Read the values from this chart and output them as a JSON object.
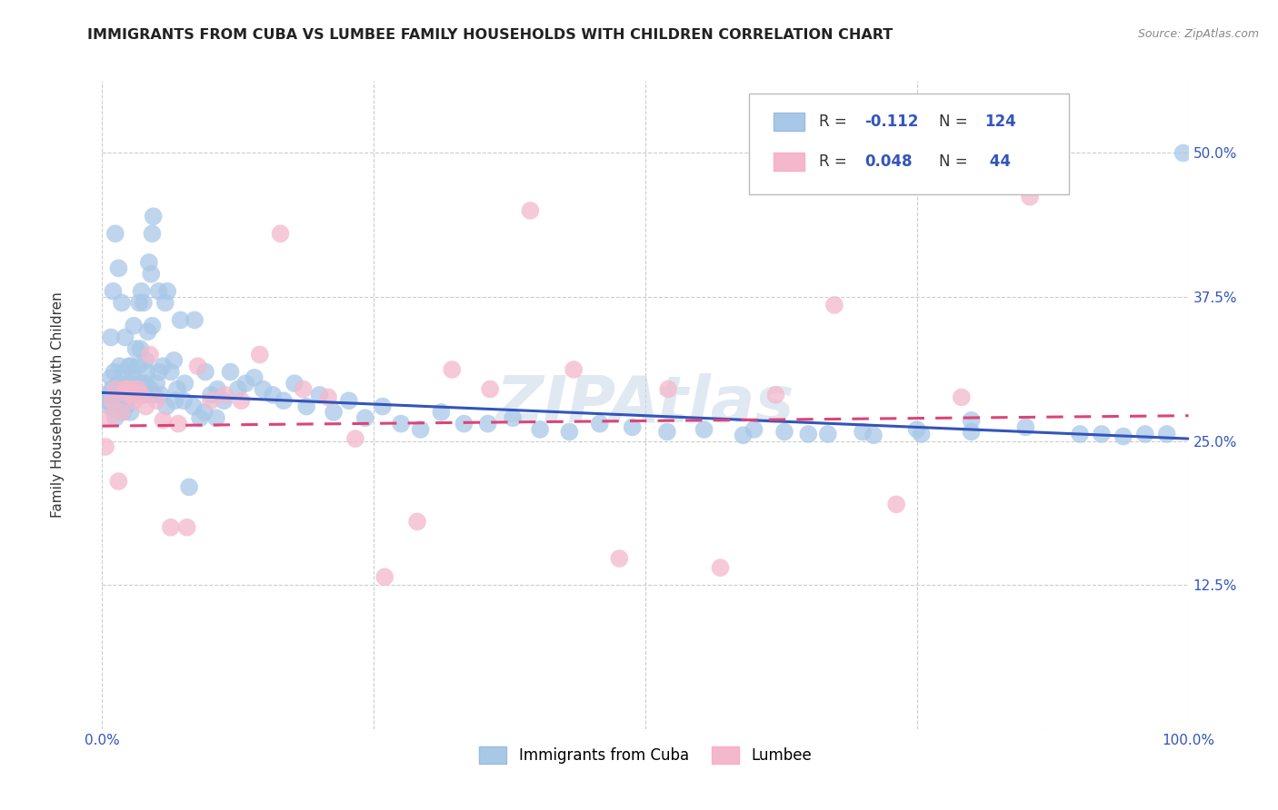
{
  "title": "IMMIGRANTS FROM CUBA VS LUMBEE FAMILY HOUSEHOLDS WITH CHILDREN CORRELATION CHART",
  "source": "Source: ZipAtlas.com",
  "ylabel": "Family Households with Children",
  "title_fontsize": 11.5,
  "source_fontsize": 9,
  "background_color": "#ffffff",
  "grid_color": "#cccccc",
  "watermark": "ZIPAtlas",
  "blue_R": -0.112,
  "blue_N": 124,
  "pink_R": 0.048,
  "pink_N": 44,
  "blue_color": "#a8c8e8",
  "pink_color": "#f4b8cc",
  "blue_line_color": "#3355bb",
  "pink_line_color": "#dd4477",
  "blue_text_color": "#3355bb",
  "axis_label_color": "#3355bb",
  "xmin": 0.0,
  "xmax": 1.0,
  "ymin": 0.0,
  "ymax": 0.5625,
  "yticks": [
    0.0,
    0.125,
    0.25,
    0.375,
    0.5
  ],
  "ytick_labels": [
    "",
    "12.5%",
    "25.0%",
    "37.5%",
    "50.0%"
  ],
  "xticks": [
    0.0,
    0.25,
    0.5,
    0.75,
    1.0
  ],
  "xtick_labels": [
    "0.0%",
    "",
    "",
    "",
    "100.0%"
  ],
  "blue_x": [
    0.003,
    0.005,
    0.007,
    0.008,
    0.009,
    0.01,
    0.011,
    0.012,
    0.013,
    0.014,
    0.015,
    0.016,
    0.017,
    0.018,
    0.019,
    0.02,
    0.021,
    0.022,
    0.023,
    0.024,
    0.025,
    0.026,
    0.027,
    0.028,
    0.029,
    0.03,
    0.031,
    0.032,
    0.033,
    0.034,
    0.035,
    0.036,
    0.037,
    0.038,
    0.039,
    0.04,
    0.041,
    0.042,
    0.043,
    0.044,
    0.045,
    0.046,
    0.047,
    0.048,
    0.05,
    0.052,
    0.054,
    0.056,
    0.058,
    0.06,
    0.063,
    0.066,
    0.069,
    0.072,
    0.076,
    0.08,
    0.085,
    0.09,
    0.095,
    0.1,
    0.106,
    0.112,
    0.118,
    0.125,
    0.132,
    0.14,
    0.148,
    0.157,
    0.167,
    0.177,
    0.188,
    0.2,
    0.213,
    0.227,
    0.242,
    0.258,
    0.275,
    0.293,
    0.312,
    0.333,
    0.355,
    0.378,
    0.403,
    0.43,
    0.458,
    0.488,
    0.52,
    0.554,
    0.59,
    0.628,
    0.668,
    0.71,
    0.754,
    0.8,
    0.6,
    0.65,
    0.7,
    0.75,
    0.8,
    0.85,
    0.9,
    0.92,
    0.94,
    0.96,
    0.98,
    0.995,
    0.008,
    0.01,
    0.012,
    0.015,
    0.018,
    0.022,
    0.026,
    0.03,
    0.035,
    0.04,
    0.046,
    0.052,
    0.059,
    0.067,
    0.075,
    0.084,
    0.094,
    0.105
  ],
  "blue_y": [
    0.29,
    0.285,
    0.28,
    0.305,
    0.295,
    0.28,
    0.31,
    0.27,
    0.29,
    0.295,
    0.3,
    0.315,
    0.285,
    0.295,
    0.275,
    0.31,
    0.34,
    0.28,
    0.3,
    0.295,
    0.315,
    0.275,
    0.3,
    0.31,
    0.35,
    0.29,
    0.33,
    0.3,
    0.315,
    0.37,
    0.295,
    0.38,
    0.3,
    0.37,
    0.29,
    0.32,
    0.31,
    0.345,
    0.405,
    0.295,
    0.395,
    0.43,
    0.445,
    0.29,
    0.3,
    0.38,
    0.29,
    0.315,
    0.37,
    0.38,
    0.31,
    0.32,
    0.295,
    0.355,
    0.3,
    0.21,
    0.355,
    0.27,
    0.31,
    0.29,
    0.295,
    0.285,
    0.31,
    0.295,
    0.3,
    0.305,
    0.295,
    0.29,
    0.285,
    0.3,
    0.28,
    0.29,
    0.275,
    0.285,
    0.27,
    0.28,
    0.265,
    0.26,
    0.275,
    0.265,
    0.265,
    0.27,
    0.26,
    0.258,
    0.265,
    0.262,
    0.258,
    0.26,
    0.255,
    0.258,
    0.256,
    0.255,
    0.256,
    0.258,
    0.26,
    0.256,
    0.258,
    0.26,
    0.268,
    0.262,
    0.256,
    0.256,
    0.254,
    0.256,
    0.256,
    0.5,
    0.34,
    0.38,
    0.43,
    0.4,
    0.37,
    0.29,
    0.315,
    0.29,
    0.33,
    0.3,
    0.35,
    0.31,
    0.28,
    0.285,
    0.285,
    0.28,
    0.275,
    0.27
  ],
  "pink_x": [
    0.003,
    0.006,
    0.009,
    0.012,
    0.015,
    0.018,
    0.021,
    0.024,
    0.027,
    0.03,
    0.033,
    0.036,
    0.04,
    0.044,
    0.05,
    0.056,
    0.063,
    0.07,
    0.078,
    0.088,
    0.1,
    0.113,
    0.128,
    0.145,
    0.164,
    0.185,
    0.208,
    0.233,
    0.26,
    0.29,
    0.322,
    0.357,
    0.394,
    0.434,
    0.476,
    0.521,
    0.569,
    0.62,
    0.674,
    0.731,
    0.791,
    0.854,
    0.022,
    0.028
  ],
  "pink_y": [
    0.245,
    0.27,
    0.285,
    0.295,
    0.215,
    0.275,
    0.295,
    0.29,
    0.295,
    0.285,
    0.295,
    0.29,
    0.28,
    0.325,
    0.285,
    0.268,
    0.175,
    0.265,
    0.175,
    0.315,
    0.285,
    0.29,
    0.285,
    0.325,
    0.43,
    0.295,
    0.288,
    0.252,
    0.132,
    0.18,
    0.312,
    0.295,
    0.45,
    0.312,
    0.148,
    0.295,
    0.14,
    0.29,
    0.368,
    0.195,
    0.288,
    0.462,
    0.295,
    0.29
  ],
  "legend_labels": [
    "Immigrants from Cuba",
    "Lumbee"
  ],
  "blue_trend_x": [
    0.0,
    1.0
  ],
  "blue_trend_y": [
    0.292,
    0.252
  ],
  "pink_trend_x": [
    0.0,
    1.0
  ],
  "pink_trend_y": [
    0.263,
    0.272
  ]
}
